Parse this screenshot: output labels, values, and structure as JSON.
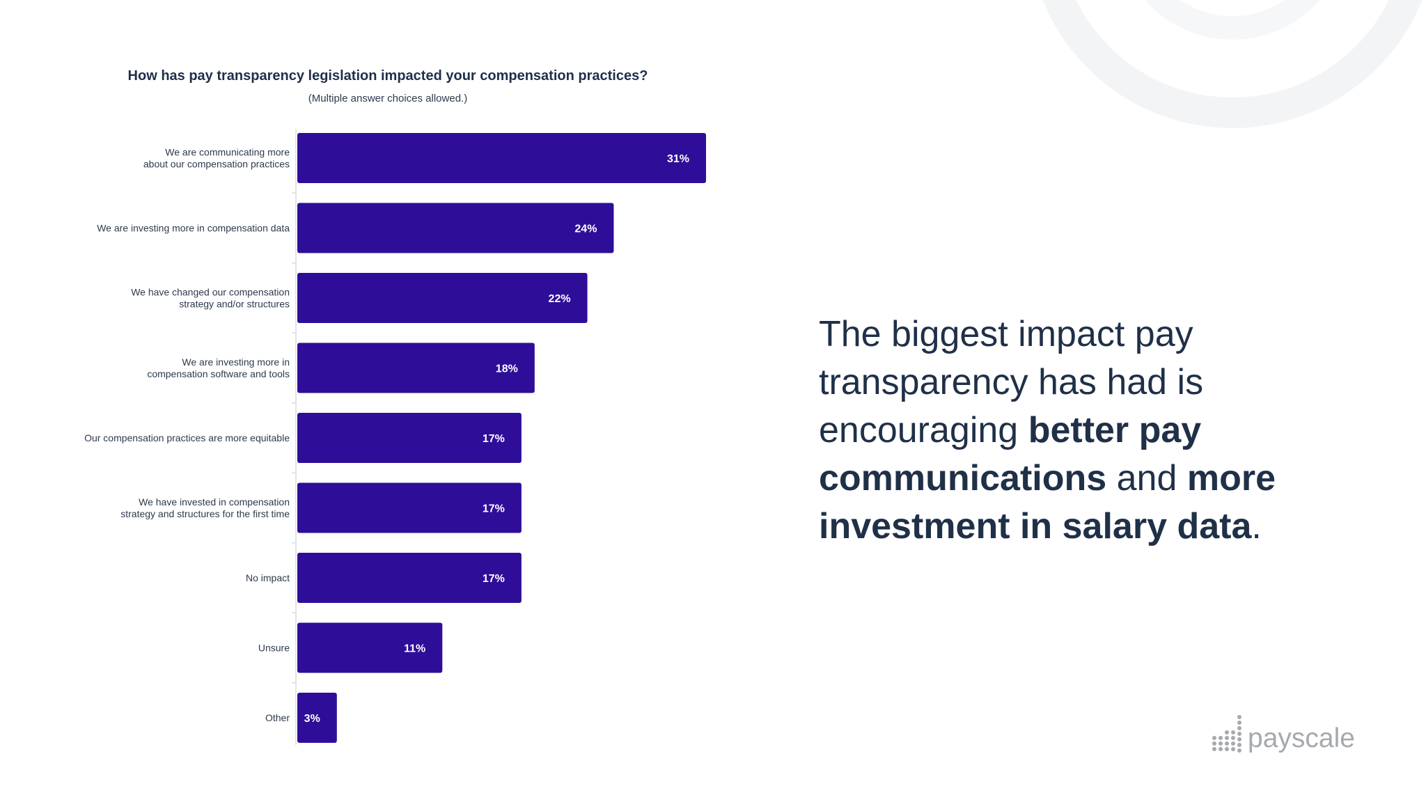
{
  "chart_data": {
    "type": "bar",
    "orientation": "horizontal",
    "title": "How has pay transparency legislation impacted your compensation practices?",
    "subtitle": "(Multiple answer choices allowed.)",
    "categories": [
      [
        "We are communicating more",
        "about our compensation practices"
      ],
      [
        "We are investing more in compensation data"
      ],
      [
        "We have changed our compensation",
        "strategy and/or structures"
      ],
      [
        "We are investing more in",
        "compensation software and tools"
      ],
      [
        "Our compensation practices are more equitable"
      ],
      [
        "We have invested in compensation",
        "strategy and structures for the first time"
      ],
      [
        "No impact"
      ],
      [
        "Unsure"
      ],
      [
        "Other"
      ]
    ],
    "values": [
      31,
      24,
      22,
      18,
      17,
      17,
      17,
      11,
      3
    ],
    "value_labels": [
      "31%",
      "24%",
      "22%",
      "18%",
      "17%",
      "17%",
      "17%",
      "11%",
      "3%"
    ],
    "unit": "%",
    "xlim": [
      0,
      31
    ],
    "grid": false,
    "legend": "none",
    "bar_color": "#2e0e99"
  },
  "headline": {
    "part1": "The biggest impact pay transparency has had is encouraging ",
    "bold1": "better pay communications",
    "part2": " and ",
    "bold2": "more investment in salary data",
    "part3": "."
  },
  "logo": {
    "text": "payscale",
    "dot_color": "#a6a9ad"
  },
  "colors": {
    "bar": "#2e0e99",
    "headline": "#1f3048",
    "decor_ring": "#f3f4f5"
  }
}
